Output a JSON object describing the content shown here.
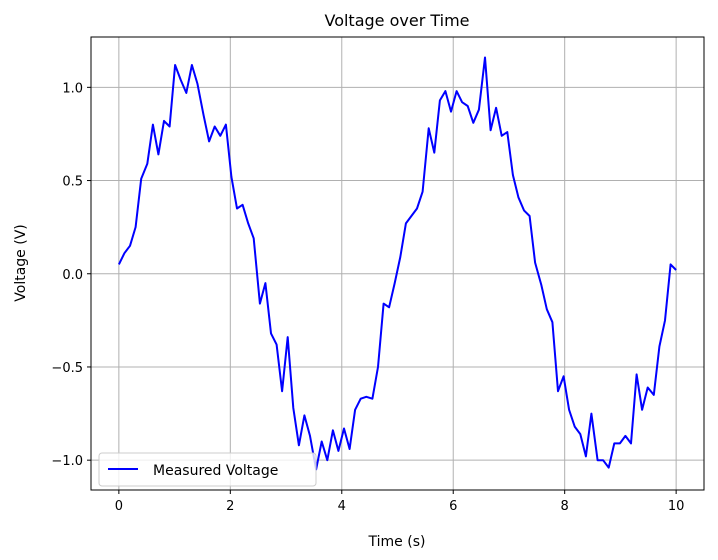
{
  "chart_data": {
    "type": "line",
    "title": "Voltage over Time",
    "xlabel": "Time (s)",
    "ylabel": "Voltage (V)",
    "xlim": [
      -0.5,
      10.5
    ],
    "ylim": [
      -1.16,
      1.27
    ],
    "xticks": [
      0,
      2,
      4,
      6,
      8,
      10
    ],
    "xtick_labels": [
      "0",
      "2",
      "4",
      "6",
      "8",
      "10"
    ],
    "yticks": [
      -1.0,
      -0.5,
      0.0,
      0.5,
      1.0
    ],
    "ytick_labels": [
      "−1.0",
      "−0.5",
      "0.0",
      "0.5",
      "1.0"
    ],
    "grid": true,
    "legend_position": "lower-left",
    "series": [
      {
        "name": "Measured Voltage",
        "color": "#0000ff",
        "x": [
          0,
          0.1,
          0.2,
          0.3,
          0.4,
          0.51,
          0.61,
          0.71,
          0.81,
          0.91,
          1.01,
          1.11,
          1.21,
          1.31,
          1.41,
          1.52,
          1.62,
          1.72,
          1.82,
          1.92,
          2.02,
          2.12,
          2.22,
          2.32,
          2.42,
          2.53,
          2.63,
          2.73,
          2.83,
          2.93,
          3.03,
          3.13,
          3.23,
          3.33,
          3.43,
          3.54,
          3.64,
          3.74,
          3.84,
          3.94,
          4.04,
          4.14,
          4.24,
          4.34,
          4.44,
          4.55,
          4.65,
          4.75,
          4.85,
          4.95,
          5.05,
          5.15,
          5.25,
          5.35,
          5.45,
          5.56,
          5.66,
          5.76,
          5.86,
          5.96,
          6.06,
          6.16,
          6.26,
          6.36,
          6.46,
          6.57,
          6.67,
          6.77,
          6.87,
          6.97,
          7.07,
          7.17,
          7.27,
          7.37,
          7.47,
          7.58,
          7.68,
          7.78,
          7.88,
          7.98,
          8.08,
          8.18,
          8.28,
          8.38,
          8.48,
          8.59,
          8.69,
          8.79,
          8.89,
          8.99,
          9.09,
          9.19,
          9.29,
          9.39,
          9.49,
          9.6,
          9.7,
          9.8,
          9.9,
          10.0
        ],
        "y": [
          0.05,
          0.11,
          0.15,
          0.25,
          0.51,
          0.59,
          0.8,
          0.64,
          0.82,
          0.79,
          1.12,
          1.04,
          0.97,
          1.12,
          1.02,
          0.85,
          0.71,
          0.79,
          0.74,
          0.8,
          0.52,
          0.35,
          0.37,
          0.27,
          0.19,
          -0.16,
          -0.05,
          -0.32,
          -0.38,
          -0.63,
          -0.34,
          -0.72,
          -0.92,
          -0.76,
          -0.87,
          -1.05,
          -0.9,
          -1.0,
          -0.84,
          -0.95,
          -0.83,
          -0.94,
          -0.73,
          -0.67,
          -0.66,
          -0.67,
          -0.5,
          -0.16,
          -0.18,
          -0.05,
          0.09,
          0.27,
          0.31,
          0.35,
          0.44,
          0.78,
          0.65,
          0.93,
          0.98,
          0.87,
          0.98,
          0.92,
          0.9,
          0.81,
          0.88,
          1.16,
          0.77,
          0.89,
          0.74,
          0.76,
          0.53,
          0.41,
          0.34,
          0.31,
          0.06,
          -0.06,
          -0.19,
          -0.26,
          -0.63,
          -0.55,
          -0.73,
          -0.82,
          -0.86,
          -0.98,
          -0.75,
          -1.0,
          -1.0,
          -1.04,
          -0.91,
          -0.91,
          -0.87,
          -0.91,
          -0.54,
          -0.73,
          -0.61,
          -0.65,
          -0.39,
          -0.25,
          0.05,
          0.02
        ]
      }
    ]
  }
}
